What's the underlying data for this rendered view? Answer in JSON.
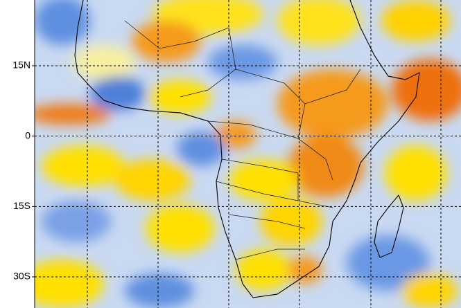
{
  "map": {
    "lat_ticks": [
      {
        "value": 15,
        "label": "15N"
      },
      {
        "value": 0,
        "label": "0"
      },
      {
        "value": -15,
        "label": "15S"
      },
      {
        "value": -30,
        "label": "30S"
      }
    ]
  }
}
